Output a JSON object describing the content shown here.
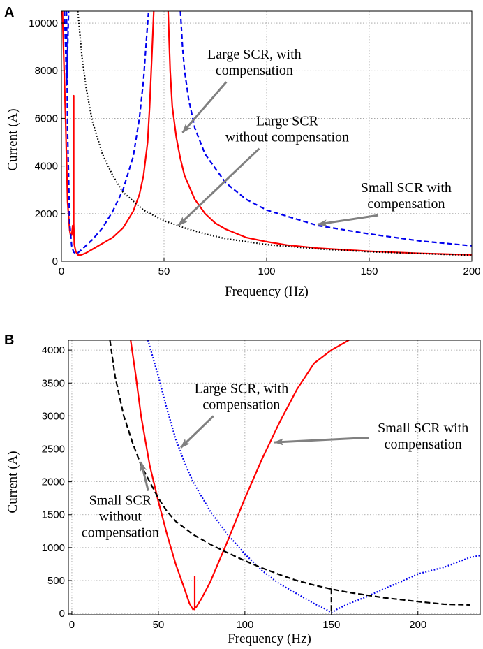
{
  "chart_data": [
    {
      "panel": "A",
      "type": "line",
      "xlabel": "Frequency  (Hz)",
      "ylabel": "Current  (A)",
      "xlim": [
        0,
        200
      ],
      "ylim": [
        0,
        10500
      ],
      "xticks": [
        0,
        50,
        100,
        150,
        200
      ],
      "yticks": [
        0,
        2000,
        4000,
        6000,
        8000,
        10000
      ],
      "grid": true,
      "series": [
        {
          "name": "red-solid",
          "color": "#ff0000",
          "dash": "solid",
          "segments": [
            [
              [
                0.5,
                10500
              ],
              [
                1,
                9000
              ],
              [
                2,
                6000
              ],
              [
                3,
                2500
              ],
              [
                4,
                1300
              ],
              [
                4.5,
                1080
              ],
              [
                5,
                1100
              ],
              [
                5.5,
                1500
              ]
            ],
            [
              [
                6,
                6950
              ],
              [
                6,
                1600
              ],
              [
                6.3,
                700
              ],
              [
                7,
                400
              ],
              [
                8,
                270
              ],
              [
                9,
                250
              ],
              [
                10,
                280
              ],
              [
                12,
                350
              ],
              [
                15,
                500
              ],
              [
                20,
                750
              ],
              [
                25,
                1000
              ],
              [
                30,
                1400
              ],
              [
                35,
                2100
              ],
              [
                38,
                2800
              ],
              [
                40,
                3600
              ],
              [
                42,
                5000
              ],
              [
                43,
                6500
              ],
              [
                44,
                8500
              ],
              [
                45,
                10500
              ]
            ],
            [
              [
                52,
                10500
              ],
              [
                53,
                8000
              ],
              [
                54,
                6500
              ],
              [
                56,
                5200
              ],
              [
                58,
                4300
              ],
              [
                60,
                3600
              ],
              [
                65,
                2600
              ],
              [
                70,
                2000
              ],
              [
                75,
                1600
              ],
              [
                80,
                1350
              ],
              [
                90,
                1000
              ],
              [
                100,
                820
              ],
              [
                110,
                680
              ],
              [
                125,
                550
              ],
              [
                150,
                420
              ],
              [
                175,
                330
              ],
              [
                200,
                270
              ]
            ]
          ]
        },
        {
          "name": "blue-dashed",
          "color": "#0000ee",
          "dash": "7 4",
          "segments": [
            [
              [
                1.5,
                10500
              ],
              [
                2,
                9000
              ],
              [
                2.5,
                7400
              ],
              [
                3,
                8800
              ],
              [
                3.5,
                10500
              ]
            ],
            [
              [
                2.5,
                10500
              ],
              [
                3,
                5500
              ],
              [
                4,
                1600
              ],
              [
                5,
                650
              ],
              [
                6,
                380
              ],
              [
                7,
                320
              ],
              [
                8,
                350
              ],
              [
                10,
                500
              ],
              [
                15,
                900
              ],
              [
                20,
                1400
              ],
              [
                25,
                2100
              ],
              [
                30,
                3000
              ],
              [
                35,
                4400
              ],
              [
                38,
                6000
              ],
              [
                40,
                7600
              ],
              [
                42,
                10000
              ],
              [
                42.5,
                10500
              ]
            ],
            [
              [
                58,
                10500
              ],
              [
                59,
                9000
              ],
              [
                60,
                8000
              ],
              [
                62,
                6800
              ],
              [
                65,
                5600
              ],
              [
                70,
                4500
              ],
              [
                80,
                3300
              ],
              [
                90,
                2600
              ],
              [
                100,
                2150
              ],
              [
                125,
                1500
              ],
              [
                150,
                1150
              ],
              [
                175,
                850
              ],
              [
                200,
                650
              ]
            ]
          ]
        },
        {
          "name": "black-dotted",
          "color": "#000000",
          "dash": "1.6 2.6",
          "segments": [
            [
              [
                8,
                10500
              ],
              [
                10,
                8600
              ],
              [
                12,
                7300
              ],
              [
                15,
                5900
              ],
              [
                20,
                4500
              ],
              [
                25,
                3600
              ],
              [
                30,
                2900
              ],
              [
                40,
                2150
              ],
              [
                50,
                1700
              ],
              [
                60,
                1400
              ],
              [
                70,
                1150
              ],
              [
                80,
                950
              ],
              [
                100,
                700
              ],
              [
                125,
                520
              ],
              [
                150,
                400
              ],
              [
                200,
                250
              ]
            ]
          ]
        }
      ],
      "annotations": [
        {
          "lines": [
            "Large SCR, with",
            "compensation"
          ],
          "arrow_to": [
            59,
            5400
          ],
          "text_x": 94,
          "text_y": 8500
        },
        {
          "lines": [
            "Large SCR",
            "without compensation"
          ],
          "arrow_to": [
            57,
            1500
          ],
          "text_x": 110,
          "text_y": 5700
        },
        {
          "lines": [
            "Small SCR with",
            "compensation"
          ],
          "arrow_to": [
            125,
            1550
          ],
          "text_x": 168,
          "text_y": 2900
        }
      ]
    },
    {
      "panel": "B",
      "type": "line",
      "xlabel": "Frequency  (Hz)",
      "ylabel": "Current  (A)",
      "xlim": [
        -2,
        236
      ],
      "ylim": [
        -20,
        4150
      ],
      "xticks": [
        0,
        50,
        100,
        150,
        200
      ],
      "yticks": [
        0,
        500,
        1000,
        1500,
        2000,
        2500,
        3000,
        3500,
        4000
      ],
      "grid": true,
      "series": [
        {
          "name": "red-solid",
          "color": "#ff0000",
          "dash": "solid",
          "segments": [
            [
              [
                34,
                4150
              ],
              [
                37,
                3600
              ],
              [
                40,
                3000
              ],
              [
                45,
                2250
              ],
              [
                50,
                1700
              ],
              [
                55,
                1200
              ],
              [
                60,
                750
              ],
              [
                65,
                380
              ],
              [
                68,
                150
              ],
              [
                70,
                60
              ],
              [
                72,
                100
              ],
              [
                75,
                230
              ],
              [
                80,
                480
              ],
              [
                90,
                1100
              ],
              [
                100,
                1750
              ],
              [
                110,
                2350
              ],
              [
                120,
                2900
              ],
              [
                130,
                3400
              ],
              [
                140,
                3800
              ],
              [
                150,
                4000
              ],
              [
                160,
                4150
              ]
            ],
            [
              [
                71,
                560
              ],
              [
                71,
                60
              ]
            ]
          ]
        },
        {
          "name": "blue-dotted",
          "color": "#0000ee",
          "dash": "1.8 2.4",
          "segments": [
            [
              [
                44,
                4150
              ],
              [
                50,
                3600
              ],
              [
                55,
                3100
              ],
              [
                60,
                2650
              ],
              [
                65,
                2300
              ],
              [
                70,
                2000
              ],
              [
                80,
                1550
              ],
              [
                90,
                1200
              ],
              [
                100,
                900
              ],
              [
                110,
                650
              ],
              [
                120,
                450
              ],
              [
                130,
                300
              ],
              [
                140,
                150
              ],
              [
                147,
                60
              ],
              [
                150,
                10
              ],
              [
                153,
                60
              ],
              [
                160,
                150
              ],
              [
                170,
                250
              ],
              [
                180,
                370
              ],
              [
                190,
                480
              ],
              [
                200,
                600
              ],
              [
                215,
                700
              ],
              [
                230,
                850
              ],
              [
                236,
                880
              ]
            ]
          ]
        },
        {
          "name": "black-dashed",
          "color": "#000000",
          "dash": "8 4",
          "segments": [
            [
              [
                22,
                4150
              ],
              [
                25,
                3600
              ],
              [
                30,
                3000
              ],
              [
                35,
                2600
              ],
              [
                40,
                2250
              ],
              [
                45,
                2000
              ],
              [
                50,
                1750
              ],
              [
                55,
                1550
              ],
              [
                60,
                1400
              ],
              [
                70,
                1200
              ],
              [
                80,
                1050
              ],
              [
                90,
                920
              ],
              [
                100,
                800
              ],
              [
                110,
                690
              ],
              [
                120,
                590
              ],
              [
                130,
                500
              ],
              [
                140,
                430
              ],
              [
                150,
                370
              ],
              [
                160,
                320
              ],
              [
                170,
                280
              ],
              [
                180,
                240
              ],
              [
                190,
                210
              ],
              [
                200,
                180
              ],
              [
                215,
                140
              ],
              [
                230,
                130
              ]
            ],
            [
              [
                150,
                380
              ],
              [
                150,
                0
              ]
            ]
          ]
        }
      ],
      "annotations": [
        {
          "lines": [
            "Large SCR, with",
            "compensation"
          ],
          "arrow_to": [
            63,
            2520
          ],
          "text_x": 98,
          "text_y": 3350
        },
        {
          "lines": [
            "Small SCR with",
            "compensation"
          ],
          "arrow_to": [
            117,
            2600
          ],
          "text_x": 203,
          "text_y": 2750
        },
        {
          "lines": [
            "Small SCR",
            "without",
            "compensation"
          ],
          "arrow_to": [
            40,
            2300
          ],
          "text_x": 28,
          "text_y": 1650
        }
      ]
    }
  ]
}
